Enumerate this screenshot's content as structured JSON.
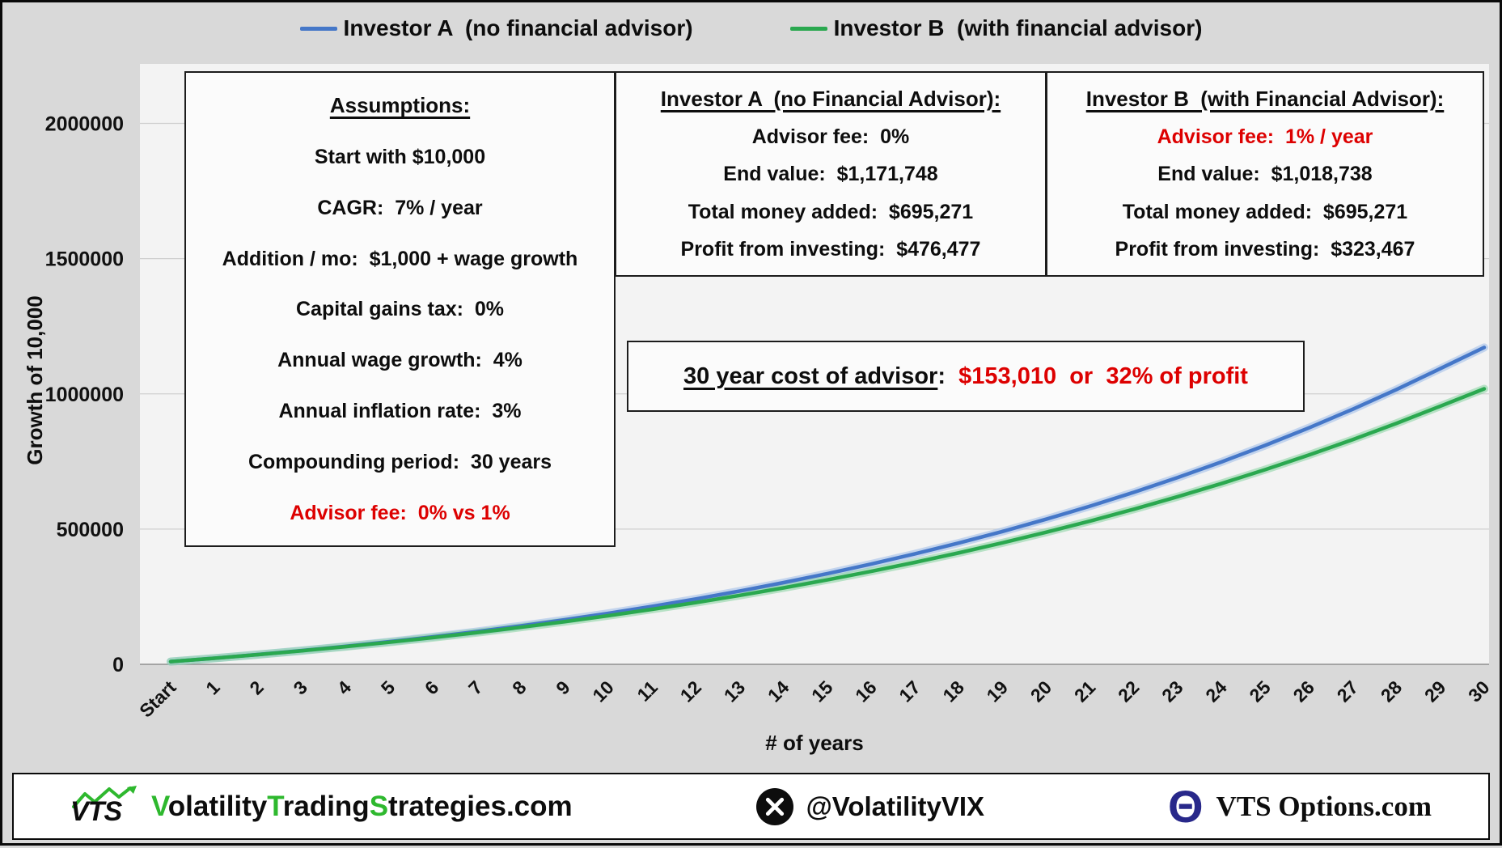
{
  "colors": {
    "accent_red": "#dd0000",
    "brand_green": "#2eb82e",
    "investor_a_blue": "#4577c8",
    "investor_b_green": "#2aa84f",
    "theta_navy": "#28288a"
  },
  "legend": {
    "a_label": "Investor A  (no financial advisor)",
    "b_label": "Investor B  (with financial advisor)"
  },
  "assumptions": {
    "title": "Assumptions:",
    "rows": [
      "Start with $10,000",
      "CAGR:  7% / year",
      "Addition / mo:  $1,000 + wage growth",
      "Capital gains tax:  0%",
      "Annual wage growth:  4%",
      "Annual inflation rate:  3%",
      "Compounding period:  30 years"
    ],
    "fee_line": "Advisor fee:  0% vs 1%"
  },
  "investor_a_box": {
    "title": "Investor A  (no Financial Advisor):",
    "rows": [
      "Advisor fee:  0%",
      "End value:  $1,171,748",
      "Total money added:  $695,271",
      "Profit from investing:  $476,477"
    ]
  },
  "investor_b_box": {
    "title": "Investor B  (with Financial Advisor):",
    "fee_line": "Advisor fee:  1% / year",
    "rows": [
      "End value:  $1,018,738",
      "Total money added:  $695,271",
      "Profit from investing:  $323,467"
    ]
  },
  "cost_banner": {
    "label": "30 year cost of advisor",
    "colon": ":  ",
    "value": "$153,010  or  32% of profit"
  },
  "footer": {
    "logo_text": "VTS",
    "site": {
      "s1": "V",
      "s2": "olatility",
      "s3": "T",
      "s4": "rading",
      "s5": "S",
      "s6": "trategies",
      "s7": ".com"
    },
    "x_handle": "@VolatilityVIX",
    "options_site": "VTS Options.com"
  },
  "chart_data": {
    "type": "line",
    "title": "",
    "xlabel": "# of years",
    "ylabel": "Growth of 10,000",
    "x_tick_labels": [
      "Start",
      "1",
      "2",
      "3",
      "4",
      "5",
      "6",
      "7",
      "8",
      "9",
      "10",
      "11",
      "12",
      "13",
      "14",
      "15",
      "16",
      "17",
      "18",
      "19",
      "20",
      "21",
      "22",
      "23",
      "24",
      "25",
      "26",
      "27",
      "28",
      "29",
      "30"
    ],
    "y_ticks": [
      0,
      500000,
      1000000,
      1500000,
      2000000
    ],
    "y_tick_labels": [
      "0",
      "500000",
      "1000000",
      "1500000",
      "2000000"
    ],
    "ylim": [
      0,
      2220000
    ],
    "grid": true,
    "legend_position": "top",
    "series": [
      {
        "name": "Investor A (no financial advisor)",
        "color": "#4577c8",
        "halo": "#a3c0ea",
        "values": [
          10000,
          22618,
          36230,
          50894,
          66674,
          83634,
          101844,
          121378,
          142311,
          164724,
          188703,
          214337,
          241719,
          270949,
          302131,
          335374,
          370793,
          408509,
          448648,
          491345,
          536740,
          584981,
          636222,
          690627,
          748366,
          809619,
          874575,
          943432,
          1016398,
          1093692,
          1171748
        ]
      },
      {
        "name": "Investor B (with financial advisor)",
        "color": "#2aa84f",
        "halo": "#8fd6a6",
        "values": [
          10000,
          22518,
          35900,
          50192,
          65442,
          81698,
          99014,
          117444,
          137045,
          157877,
          180003,
          203489,
          228403,
          254816,
          282804,
          312446,
          343823,
          377022,
          412132,
          449247,
          488465,
          529890,
          573629,
          619794,
          668502,
          719875,
          774042,
          831137,
          891300,
          954677,
          1018738
        ]
      }
    ]
  }
}
